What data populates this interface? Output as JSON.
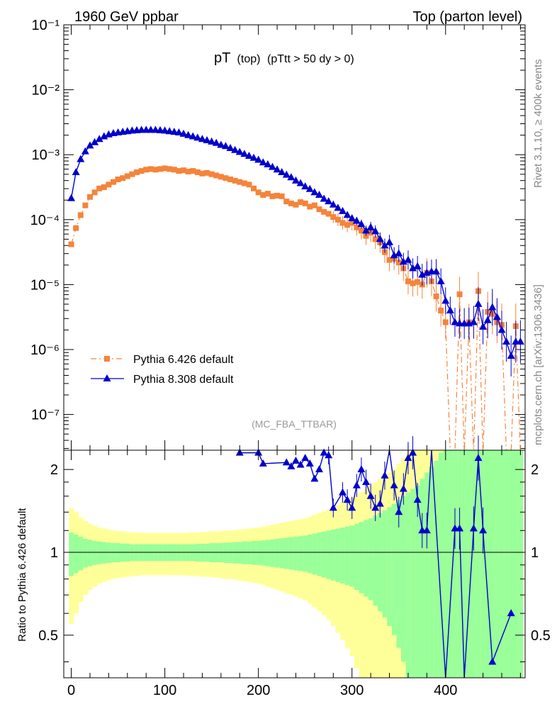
{
  "header": {
    "left": "1960 GeV ppbar",
    "right": "Top (parton level)"
  },
  "plot_title": {
    "main": "pT",
    "paren": "(top)",
    "cut": "(pTtt > 50 dy > 0)"
  },
  "watermark": "(MC_FBA_TTBAR)",
  "side_labels": {
    "rivet": "Rivet 3.1.10, ≥ 400k events",
    "mcplots": "mcplots.cern.ch [arXiv:1306.3436]"
  },
  "legend": [
    {
      "label": "Pythia 6.426 default",
      "color": "#f5843a",
      "marker": "square",
      "dash": "8,4,2,4"
    },
    {
      "label": "Pythia 8.308 default",
      "color": "#0000cc",
      "marker": "triangle",
      "dash": ""
    }
  ],
  "ratio_ylabel": "Ratio to Pythia 6.426 default",
  "colors": {
    "band_yellow": "#ffff99",
    "band_green": "#99ff99",
    "p6": "#f5843a",
    "p8": "#0000cc"
  },
  "chart_data": [
    {
      "type": "line",
      "panel": "main",
      "xlim": [
        -8,
        485
      ],
      "ylim_log10": [
        -7.55,
        -1.0
      ],
      "yscale": "log",
      "y_tick_labels": [
        "10⁻¹",
        "10⁻²",
        "10⁻³",
        "10⁻⁴",
        "10⁻⁵",
        "10⁻⁶",
        "10⁻⁷"
      ],
      "x": [
        0,
        5,
        10,
        15,
        20,
        25,
        30,
        35,
        40,
        45,
        50,
        55,
        60,
        65,
        70,
        75,
        80,
        85,
        90,
        95,
        100,
        105,
        110,
        115,
        120,
        125,
        130,
        135,
        140,
        145,
        150,
        155,
        160,
        165,
        170,
        175,
        180,
        185,
        190,
        195,
        200,
        205,
        210,
        215,
        220,
        225,
        230,
        235,
        240,
        245,
        250,
        255,
        260,
        265,
        270,
        275,
        280,
        285,
        290,
        295,
        300,
        305,
        310,
        315,
        320,
        325,
        330,
        335,
        340,
        345,
        350,
        355,
        360,
        365,
        370,
        375,
        380,
        385,
        390,
        395,
        400,
        405,
        410,
        415,
        420,
        425,
        430,
        435,
        440,
        445,
        450,
        455,
        460,
        465,
        470,
        475,
        480
      ],
      "series": [
        {
          "name": "Pythia 6.426 default",
          "values_log10": [
            -4.38,
            -4.13,
            -3.93,
            -3.78,
            -3.65,
            -3.58,
            -3.52,
            -3.5,
            -3.46,
            -3.42,
            -3.38,
            -3.36,
            -3.33,
            -3.3,
            -3.27,
            -3.25,
            -3.23,
            -3.22,
            -3.23,
            -3.22,
            -3.21,
            -3.22,
            -3.23,
            -3.25,
            -3.24,
            -3.26,
            -3.25,
            -3.27,
            -3.29,
            -3.28,
            -3.3,
            -3.32,
            -3.34,
            -3.36,
            -3.38,
            -3.4,
            -3.42,
            -3.44,
            -3.46,
            -3.52,
            -3.58,
            -3.62,
            -3.6,
            -3.64,
            -3.63,
            -3.64,
            -3.72,
            -3.75,
            -3.77,
            -3.73,
            -3.75,
            -3.8,
            -3.78,
            -3.84,
            -3.88,
            -3.91,
            -3.96,
            -4.0,
            -4.05,
            -4.08,
            -4.05,
            -4.12,
            -4.17,
            -4.25,
            -4.2,
            -4.3,
            -4.35,
            -4.5,
            -4.62,
            -4.6,
            -4.66,
            -4.75,
            -4.95,
            -4.98,
            -4.96,
            -5.0,
            -4.82,
            -4.95,
            -5.18,
            -5.4,
            -5.58,
            -7.6,
            -7.6,
            -5.15,
            -7.6,
            -5.58,
            -7.6,
            -5.1,
            -7.6,
            -5.42,
            -5.45,
            -5.58,
            -5.62,
            -7.6,
            -7.6,
            -5.64,
            -7.6
          ],
          "note": "-7.6 = value below plotting range (zero)"
        },
        {
          "name": "Pythia 8.308 default",
          "values_log10": [
            -3.67,
            -3.27,
            -3.07,
            -2.95,
            -2.86,
            -2.81,
            -2.76,
            -2.72,
            -2.69,
            -2.67,
            -2.66,
            -2.65,
            -2.64,
            -2.63,
            -2.625,
            -2.62,
            -2.62,
            -2.62,
            -2.62,
            -2.625,
            -2.63,
            -2.64,
            -2.65,
            -2.66,
            -2.68,
            -2.7,
            -2.72,
            -2.74,
            -2.76,
            -2.78,
            -2.8,
            -2.82,
            -2.85,
            -2.87,
            -2.9,
            -2.93,
            -2.96,
            -2.99,
            -3.02,
            -3.05,
            -3.08,
            -3.12,
            -3.15,
            -3.19,
            -3.23,
            -3.27,
            -3.31,
            -3.35,
            -3.4,
            -3.44,
            -3.49,
            -3.53,
            -3.58,
            -3.62,
            -3.68,
            -3.72,
            -3.77,
            -3.82,
            -3.87,
            -3.93,
            -3.98,
            -4.02,
            -4.07,
            -4.17,
            -4.12,
            -4.18,
            -4.3,
            -4.4,
            -4.35,
            -4.55,
            -4.52,
            -4.65,
            -4.62,
            -4.75,
            -4.72,
            -4.85,
            -4.82,
            -4.8,
            -4.8,
            -4.95,
            -5.25,
            -5.4,
            -5.58,
            -5.6,
            -5.6,
            -5.6,
            -5.58,
            -5.3,
            -5.65,
            -5.55,
            -5.35,
            -5.5,
            -5.7,
            -5.88,
            -6.1,
            -5.88,
            -5.88
          ]
        }
      ]
    },
    {
      "type": "area",
      "panel": "ratio",
      "xlim": [
        -8,
        485
      ],
      "ylim": [
        0.35,
        2.35
      ],
      "yscale": "log",
      "y_tick_labels": [
        "0.5",
        "1",
        "2"
      ],
      "x_tick_labels": [
        "0",
        "100",
        "200",
        "300",
        "400"
      ],
      "reference_line": 1.0,
      "bands": {
        "green_half_width": [
          0.18,
          0.16,
          0.14,
          0.12,
          0.11,
          0.1,
          0.095,
          0.09,
          0.085,
          0.08,
          0.08,
          0.075,
          0.075,
          0.07,
          0.07,
          0.07,
          0.07,
          0.07,
          0.07,
          0.07,
          0.07,
          0.07,
          0.07,
          0.07,
          0.07,
          0.07,
          0.07,
          0.075,
          0.075,
          0.075,
          0.08,
          0.08,
          0.08,
          0.085,
          0.085,
          0.09,
          0.09,
          0.095,
          0.095,
          0.1,
          0.1,
          0.105,
          0.11,
          0.115,
          0.12,
          0.125,
          0.13,
          0.135,
          0.14,
          0.145,
          0.15,
          0.16,
          0.17,
          0.18,
          0.19,
          0.2,
          0.21,
          0.22,
          0.23,
          0.24,
          0.25,
          0.27,
          0.29,
          0.31,
          0.33,
          0.36,
          0.39,
          0.42,
          0.46,
          0.5,
          0.55,
          0.6,
          0.65,
          0.7,
          0.75,
          0.85,
          0.95,
          1.05,
          1.15,
          1.3,
          1.45,
          1.6,
          1.8,
          2.0,
          2.2,
          2.4,
          2.6,
          2.8,
          3.0,
          3.2,
          3.4,
          3.6,
          3.8,
          4.0,
          4.2,
          4.4,
          4.6
        ],
        "yellow_half_width": [
          0.45,
          0.4,
          0.34,
          0.3,
          0.27,
          0.25,
          0.23,
          0.22,
          0.21,
          0.2,
          0.195,
          0.19,
          0.185,
          0.18,
          0.18,
          0.175,
          0.175,
          0.175,
          0.175,
          0.175,
          0.175,
          0.175,
          0.175,
          0.175,
          0.175,
          0.18,
          0.18,
          0.18,
          0.185,
          0.185,
          0.19,
          0.19,
          0.195,
          0.2,
          0.2,
          0.205,
          0.21,
          0.215,
          0.22,
          0.225,
          0.23,
          0.24,
          0.25,
          0.26,
          0.27,
          0.28,
          0.29,
          0.3,
          0.31,
          0.32,
          0.33,
          0.35,
          0.37,
          0.39,
          0.41,
          0.43,
          0.46,
          0.49,
          0.52,
          0.55,
          0.58,
          0.62,
          0.66,
          0.7,
          0.75,
          0.8,
          0.85,
          0.9,
          0.95,
          1.0,
          1.1,
          1.2,
          1.3,
          1.4,
          1.5,
          1.6,
          1.8,
          2.0,
          2.2,
          2.4,
          2.6,
          2.8,
          3.0,
          3.2,
          3.4,
          3.6,
          3.8,
          4.0,
          4.2,
          4.4,
          4.6,
          4.8,
          5.0,
          5.2,
          5.4,
          5.6,
          5.8
        ]
      },
      "series": [
        {
          "name": "Pythia 8.308 default / Pythia 6.426 default",
          "x": [
            180,
            200,
            205,
            230,
            235,
            240,
            245,
            250,
            255,
            260,
            265,
            270,
            275,
            280,
            290,
            295,
            300,
            305,
            310,
            315,
            320,
            325,
            330,
            335,
            340,
            345,
            350,
            355,
            360,
            365,
            370,
            375,
            380,
            385,
            400,
            410,
            415,
            420,
            430,
            435,
            440,
            450,
            470
          ],
          "values": [
            2.3,
            2.3,
            2.1,
            2.12,
            2.05,
            2.15,
            2.08,
            2.2,
            2.1,
            1.85,
            2.0,
            2.3,
            2.25,
            1.45,
            1.65,
            1.55,
            1.45,
            1.75,
            2.0,
            1.8,
            1.6,
            1.45,
            1.5,
            1.9,
            2.4,
            1.75,
            1.4,
            1.7,
            2.2,
            2.3,
            1.55,
            1.2,
            1.2,
            2.4,
            0.3,
            1.22,
            1.22,
            0.3,
            1.22,
            2.2,
            1.2,
            0.4,
            0.6
          ]
        }
      ]
    }
  ]
}
